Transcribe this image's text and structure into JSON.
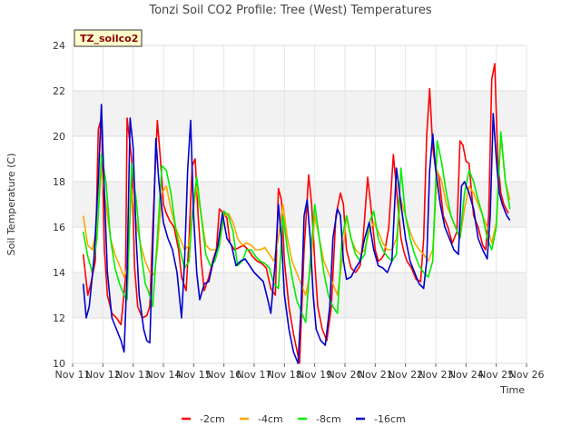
{
  "chart_data": {
    "type": "line",
    "title": "Tonzi Soil CO2 Profile: Tree (West) Temperatures",
    "xlabel": "Time",
    "ylabel": "Soil Temperature (C)",
    "badge": "TZ_soilco2",
    "xlim": [
      11,
      26
    ],
    "ylim": [
      10,
      24
    ],
    "x_ticks": [
      11,
      12,
      13,
      14,
      15,
      16,
      17,
      18,
      19,
      20,
      21,
      22,
      23,
      24,
      25,
      26
    ],
    "x_tick_labels": [
      "Nov 11",
      "Nov 12",
      "Nov 13",
      "Nov 14",
      "Nov 15",
      "Nov 16",
      "Nov 17",
      "Nov 18",
      "Nov 19",
      "Nov 20",
      "Nov 21",
      "Nov 22",
      "Nov 23",
      "Nov 24",
      "Nov 25",
      "Nov 26"
    ],
    "y_ticks": [
      10,
      12,
      14,
      16,
      18,
      20,
      22,
      24
    ],
    "y_tick_labels": [
      "10",
      "12",
      "14",
      "16",
      "18",
      "20",
      "22",
      "24"
    ],
    "grid": true,
    "legend_position": "bottom",
    "series": [
      {
        "name": "-2cm",
        "color": "#ff0000",
        "x": [
          11.35,
          11.5,
          11.6,
          11.75,
          11.85,
          11.95,
          12.05,
          12.15,
          12.3,
          12.45,
          12.6,
          12.75,
          12.8,
          12.95,
          13.05,
          13.15,
          13.3,
          13.45,
          13.55,
          13.65,
          13.8,
          13.9,
          14.0,
          14.1,
          14.2,
          14.35,
          14.5,
          14.6,
          14.75,
          14.85,
          14.95,
          15.05,
          15.15,
          15.25,
          15.35,
          15.5,
          15.65,
          15.75,
          15.85,
          16.0,
          16.1,
          16.2,
          16.35,
          16.5,
          16.65,
          16.8,
          16.95,
          17.1,
          17.25,
          17.4,
          17.55,
          17.7,
          17.8,
          17.9,
          18.0,
          18.15,
          18.3,
          18.5,
          18.65,
          18.8,
          18.9,
          19.0,
          19.1,
          19.25,
          19.4,
          19.55,
          19.7,
          19.85,
          19.95,
          20.05,
          20.2,
          20.35,
          20.5,
          20.6,
          20.75,
          20.85,
          21.0,
          21.1,
          21.2,
          21.3,
          21.45,
          21.6,
          21.75,
          21.85,
          21.95,
          22.05,
          22.2,
          22.35,
          22.5,
          22.6,
          22.7,
          22.8,
          22.9,
          23.0,
          23.1,
          23.25,
          23.4,
          23.55,
          23.7,
          23.8,
          23.9,
          24.0,
          24.1,
          24.25,
          24.4,
          24.55,
          24.65,
          24.75,
          24.85,
          24.95,
          25.05,
          25.15,
          25.25,
          25.4
        ],
        "y": [
          14.8,
          13.0,
          13.5,
          14.5,
          20.3,
          20.8,
          15.0,
          13.0,
          12.2,
          12.0,
          11.7,
          13.8,
          20.8,
          19.0,
          14.2,
          12.5,
          12.0,
          12.1,
          12.5,
          16.0,
          20.7,
          19.0,
          17.0,
          16.6,
          16.3,
          16.0,
          15.0,
          13.8,
          13.2,
          15.5,
          18.7,
          19.0,
          16.5,
          14.5,
          13.2,
          13.8,
          14.6,
          15.0,
          16.8,
          16.6,
          16.4,
          15.3,
          15.0,
          15.1,
          15.2,
          15.0,
          14.7,
          14.5,
          14.4,
          14.2,
          13.3,
          13.0,
          17.7,
          17.2,
          14.5,
          12.5,
          11.3,
          10.0,
          15.0,
          18.3,
          17.0,
          14.5,
          12.5,
          11.5,
          11.0,
          12.5,
          16.5,
          17.5,
          17.0,
          15.0,
          14.2,
          14.0,
          14.3,
          15.5,
          18.2,
          17.0,
          15.0,
          14.5,
          14.6,
          14.8,
          16.0,
          19.2,
          17.0,
          15.5,
          14.9,
          14.5,
          14.2,
          13.7,
          13.6,
          15.5,
          20.0,
          22.1,
          19.5,
          18.5,
          18.3,
          16.5,
          16.0,
          15.3,
          15.8,
          19.8,
          19.6,
          18.9,
          18.8,
          16.5,
          16.0,
          15.2,
          15.0,
          16.5,
          22.5,
          23.2,
          19.0,
          17.5,
          17.0,
          16.6
        ]
      },
      {
        "name": "-4cm",
        "color": "#ffa500",
        "x": [
          11.35,
          11.5,
          11.65,
          11.8,
          11.95,
          12.1,
          12.25,
          12.4,
          12.55,
          12.7,
          12.8,
          12.95,
          13.1,
          13.25,
          13.4,
          13.55,
          13.7,
          13.8,
          13.95,
          14.1,
          14.25,
          14.4,
          14.55,
          14.7,
          14.85,
          14.95,
          15.1,
          15.25,
          15.4,
          15.55,
          15.7,
          15.85,
          16.0,
          16.15,
          16.3,
          16.45,
          16.6,
          16.75,
          16.9,
          17.05,
          17.2,
          17.35,
          17.5,
          17.65,
          17.8,
          17.95,
          18.1,
          18.25,
          18.4,
          18.55,
          18.7,
          18.85,
          19.0,
          19.15,
          19.3,
          19.45,
          19.6,
          19.75,
          19.9,
          20.05,
          20.2,
          20.35,
          20.5,
          20.65,
          20.8,
          20.95,
          21.1,
          21.25,
          21.4,
          21.55,
          21.7,
          21.85,
          22.0,
          22.15,
          22.3,
          22.45,
          22.6,
          22.75,
          22.9,
          23.05,
          23.2,
          23.35,
          23.5,
          23.65,
          23.8,
          23.95,
          24.1,
          24.25,
          24.4,
          24.55,
          24.7,
          24.85,
          25.0,
          25.15,
          25.3,
          25.45
        ],
        "y": [
          16.5,
          15.2,
          15.0,
          16.0,
          18.5,
          17.0,
          15.5,
          14.8,
          14.3,
          13.8,
          14.2,
          17.7,
          16.2,
          15.2,
          14.5,
          14.0,
          13.9,
          15.0,
          17.5,
          17.8,
          16.8,
          16.0,
          15.5,
          15.0,
          15.2,
          16.5,
          17.8,
          16.5,
          15.2,
          15.0,
          15.0,
          15.2,
          16.5,
          16.6,
          16.2,
          15.5,
          15.2,
          15.3,
          15.2,
          15.0,
          15.0,
          15.1,
          14.8,
          14.5,
          15.5,
          17.0,
          15.5,
          14.5,
          14.0,
          13.5,
          13.0,
          14.0,
          16.5,
          15.5,
          14.5,
          14.0,
          13.5,
          13.0,
          14.5,
          16.5,
          15.5,
          15.0,
          14.8,
          15.0,
          15.8,
          16.2,
          15.8,
          15.3,
          15.0,
          15.0,
          15.5,
          17.2,
          16.5,
          15.8,
          15.3,
          15.0,
          14.8,
          14.5,
          15.0,
          18.5,
          18.0,
          17.0,
          16.5,
          16.0,
          15.5,
          16.8,
          17.8,
          17.5,
          17.0,
          16.5,
          16.0,
          15.3,
          16.2,
          20.0,
          18.0,
          17.2
        ]
      },
      {
        "name": "-8cm",
        "color": "#00ee00",
        "x": [
          11.35,
          11.5,
          11.65,
          11.8,
          11.95,
          12.1,
          12.25,
          12.4,
          12.55,
          12.7,
          12.8,
          12.95,
          13.1,
          13.25,
          13.4,
          13.5,
          13.65,
          13.8,
          13.95,
          14.1,
          14.25,
          14.4,
          14.55,
          14.7,
          14.85,
          14.95,
          15.1,
          15.25,
          15.4,
          15.55,
          15.7,
          15.85,
          16.0,
          16.15,
          16.3,
          16.45,
          16.6,
          16.75,
          16.9,
          17.05,
          17.2,
          17.35,
          17.5,
          17.65,
          17.8,
          17.95,
          18.1,
          18.25,
          18.4,
          18.55,
          18.7,
          18.85,
          19.0,
          19.15,
          19.3,
          19.45,
          19.6,
          19.75,
          19.9,
          20.05,
          20.2,
          20.35,
          20.5,
          20.65,
          20.8,
          20.95,
          21.1,
          21.25,
          21.4,
          21.55,
          21.7,
          21.85,
          22.0,
          22.15,
          22.3,
          22.45,
          22.6,
          22.75,
          22.9,
          23.05,
          23.2,
          23.35,
          23.5,
          23.65,
          23.8,
          23.95,
          24.1,
          24.25,
          24.4,
          24.55,
          24.7,
          24.85,
          25.0,
          25.15,
          25.3,
          25.45
        ],
        "y": [
          15.8,
          14.7,
          14.0,
          15.5,
          19.2,
          18.0,
          15.5,
          14.2,
          13.5,
          13.0,
          12.8,
          18.8,
          17.2,
          15.0,
          13.5,
          13.2,
          12.5,
          15.5,
          18.7,
          18.5,
          17.5,
          16.0,
          15.0,
          14.2,
          14.5,
          16.5,
          18.2,
          16.5,
          14.8,
          14.3,
          14.5,
          15.2,
          16.7,
          16.5,
          15.8,
          14.3,
          14.5,
          15.0,
          15.0,
          14.7,
          14.5,
          14.4,
          14.2,
          13.5,
          13.3,
          16.5,
          15.0,
          13.8,
          12.8,
          12.3,
          11.8,
          14.5,
          17.0,
          15.5,
          14.0,
          13.0,
          12.5,
          12.2,
          15.5,
          16.5,
          15.5,
          14.8,
          14.5,
          14.8,
          16.2,
          16.7,
          15.5,
          15.0,
          14.7,
          14.5,
          14.8,
          18.6,
          16.5,
          15.5,
          14.8,
          14.3,
          14.0,
          13.8,
          14.5,
          19.8,
          18.8,
          17.5,
          16.5,
          16.0,
          15.5,
          17.5,
          18.5,
          18.0,
          17.2,
          16.5,
          15.5,
          15.0,
          16.0,
          20.2,
          18.0,
          16.8
        ]
      },
      {
        "name": "-16cm",
        "color": "#0000cc",
        "x": [
          11.35,
          11.45,
          11.55,
          11.7,
          11.85,
          11.95,
          12.05,
          12.15,
          12.3,
          12.45,
          12.6,
          12.7,
          12.8,
          12.9,
          13.0,
          13.1,
          13.2,
          13.35,
          13.45,
          13.55,
          13.65,
          13.75,
          13.85,
          14.0,
          14.15,
          14.3,
          14.45,
          14.6,
          14.7,
          14.8,
          14.9,
          15.0,
          15.1,
          15.2,
          15.35,
          15.5,
          15.65,
          15.8,
          15.95,
          16.1,
          16.25,
          16.4,
          16.55,
          16.7,
          16.85,
          17.0,
          17.15,
          17.3,
          17.45,
          17.55,
          17.7,
          17.8,
          17.9,
          18.0,
          18.15,
          18.3,
          18.45,
          18.55,
          18.65,
          18.75,
          18.85,
          18.95,
          19.05,
          19.2,
          19.35,
          19.5,
          19.6,
          19.75,
          19.85,
          19.95,
          20.05,
          20.2,
          20.35,
          20.5,
          20.65,
          20.8,
          20.95,
          21.1,
          21.25,
          21.4,
          21.55,
          21.7,
          21.85,
          22.0,
          22.15,
          22.3,
          22.45,
          22.6,
          22.7,
          22.8,
          22.9,
          23.0,
          23.15,
          23.3,
          23.45,
          23.6,
          23.75,
          23.85,
          23.95,
          24.1,
          24.25,
          24.4,
          24.55,
          24.7,
          24.8,
          24.9,
          25.0,
          25.1,
          25.2,
          25.35,
          25.45
        ],
        "y": [
          13.5,
          12.0,
          12.5,
          14.5,
          18.0,
          21.4,
          17.5,
          14.0,
          12.0,
          11.5,
          11.0,
          10.5,
          14.0,
          20.8,
          19.5,
          15.5,
          13.0,
          11.5,
          11.0,
          10.9,
          15.0,
          19.9,
          18.0,
          16.2,
          15.5,
          15.0,
          14.0,
          12.0,
          14.5,
          18.5,
          20.7,
          16.5,
          14.0,
          12.8,
          13.5,
          13.6,
          14.5,
          15.2,
          16.6,
          15.5,
          15.2,
          14.3,
          14.5,
          14.6,
          14.3,
          14.0,
          13.8,
          13.6,
          12.8,
          12.2,
          14.5,
          17.0,
          15.5,
          13.0,
          11.5,
          10.5,
          10.0,
          12.5,
          16.5,
          17.2,
          15.5,
          13.0,
          11.5,
          11.0,
          10.8,
          12.5,
          15.5,
          16.8,
          16.5,
          14.5,
          13.7,
          13.8,
          14.2,
          14.5,
          15.5,
          16.2,
          15.0,
          14.3,
          14.2,
          14.0,
          14.5,
          18.6,
          17.0,
          15.5,
          14.5,
          14.0,
          13.5,
          13.3,
          14.5,
          18.5,
          20.1,
          18.5,
          17.0,
          16.0,
          15.5,
          15.0,
          14.8,
          17.8,
          18.0,
          17.5,
          16.8,
          15.5,
          15.0,
          14.6,
          16.5,
          21.0,
          19.0,
          17.5,
          17.0,
          16.5,
          16.3
        ]
      }
    ]
  }
}
